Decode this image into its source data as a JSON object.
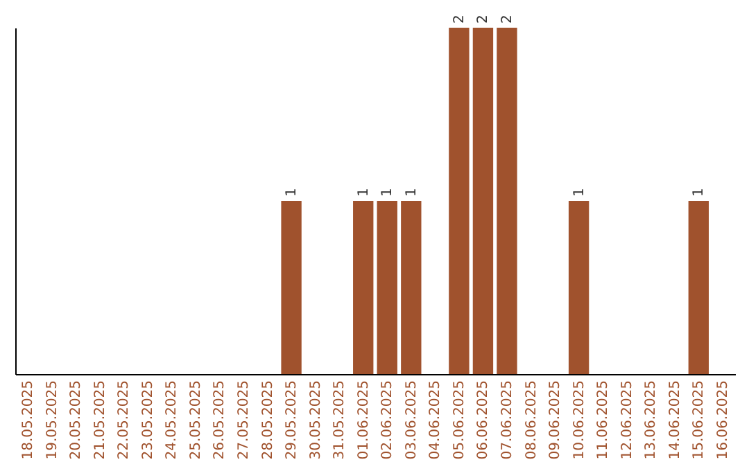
{
  "chart_data": {
    "type": "bar",
    "categories": [
      "18.05.2025",
      "19.05.2025",
      "20.05.2025",
      "21.05.2025",
      "22.05.2025",
      "23.05.2025",
      "24.05.2025",
      "25.05.2025",
      "26.05.2025",
      "27.05.2025",
      "28.05.2025",
      "29.05.2025",
      "30.05.2025",
      "31.05.2025",
      "01.06.2025",
      "02.06.2025",
      "03.06.2025",
      "04.06.2025",
      "05.06.2025",
      "06.06.2025",
      "07.06.2025",
      "08.06.2025",
      "09.06.2025",
      "10.06.2025",
      "11.06.2025",
      "12.06.2025",
      "13.06.2025",
      "14.06.2025",
      "15.06.2025",
      "16.06.2025"
    ],
    "values": [
      0,
      0,
      0,
      0,
      0,
      0,
      0,
      0,
      0,
      0,
      0,
      1,
      0,
      0,
      1,
      1,
      1,
      0,
      2,
      2,
      2,
      0,
      0,
      1,
      0,
      0,
      0,
      0,
      1,
      0
    ],
    "value_labels": [
      null,
      null,
      null,
      null,
      null,
      null,
      null,
      null,
      null,
      null,
      null,
      "1",
      null,
      null,
      "1",
      "1",
      "1",
      null,
      "2",
      "2",
      "2",
      null,
      null,
      "1",
      null,
      null,
      null,
      null,
      "1",
      null
    ],
    "color": "#a0522d"
  }
}
